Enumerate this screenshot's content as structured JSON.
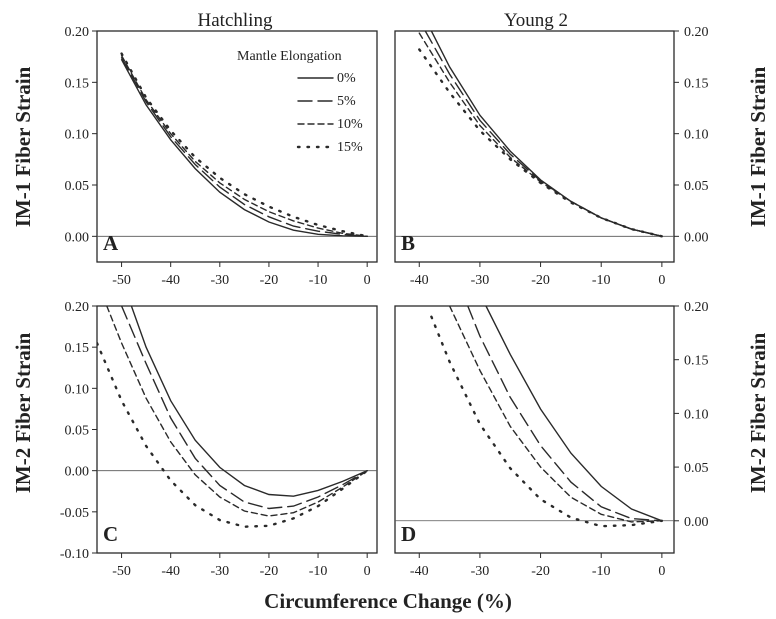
{
  "figure": {
    "x_axis_label": "Circumference Change (%)",
    "top_titles": [
      "Hatchling",
      "Young 2"
    ],
    "legend_title": "Mantle Elongation",
    "legend_items": [
      "0%",
      "5%",
      "10%",
      "15%"
    ],
    "line_color": "#2a2a2a"
  },
  "chart_data": [
    {
      "type": "line",
      "panel": "A",
      "title": "Hatchling",
      "ylabel": "IM-1 Fiber Strain",
      "xlim": [
        -55,
        2
      ],
      "ylim": [
        -0.025,
        0.2
      ],
      "xticks": [
        -50,
        -40,
        -30,
        -20,
        -10,
        0
      ],
      "yticks": [
        "0.00",
        "0.05",
        "0.10",
        "0.15",
        "0.20"
      ],
      "reference_line": 0,
      "series": [
        {
          "name": "0%",
          "style": "solid",
          "x": [
            -50,
            -45,
            -40,
            -35,
            -30,
            -25,
            -20,
            -15,
            -10,
            -5,
            0
          ],
          "y": [
            0.172,
            0.128,
            0.094,
            0.066,
            0.043,
            0.026,
            0.014,
            0.006,
            0.002,
            0.0005,
            0
          ]
        },
        {
          "name": "5%",
          "style": "long-dash",
          "x": [
            -50,
            -45,
            -40,
            -35,
            -30,
            -25,
            -20,
            -15,
            -10,
            -5,
            0
          ],
          "y": [
            0.174,
            0.131,
            0.097,
            0.07,
            0.048,
            0.031,
            0.019,
            0.01,
            0.005,
            0.002,
            0
          ]
        },
        {
          "name": "10%",
          "style": "short-dash",
          "x": [
            -50,
            -45,
            -40,
            -35,
            -30,
            -25,
            -20,
            -15,
            -10,
            -5,
            0
          ],
          "y": [
            0.176,
            0.133,
            0.1,
            0.073,
            0.052,
            0.036,
            0.024,
            0.015,
            0.008,
            0.003,
            0
          ]
        },
        {
          "name": "15%",
          "style": "dotted",
          "x": [
            -50,
            -45,
            -40,
            -35,
            -30,
            -25,
            -20,
            -15,
            -10,
            -5,
            0
          ],
          "y": [
            0.178,
            0.135,
            0.103,
            0.077,
            0.057,
            0.041,
            0.029,
            0.019,
            0.011,
            0.005,
            0
          ]
        }
      ]
    },
    {
      "type": "line",
      "panel": "B",
      "title": "Young 2",
      "ylabel": "IM-1 Fiber Strain",
      "xlim": [
        -44,
        2
      ],
      "ylim": [
        -0.025,
        0.2
      ],
      "xticks": [
        -40,
        -30,
        -20,
        -10,
        0
      ],
      "yticks": [
        "0.00",
        "0.05",
        "0.10",
        "0.15",
        "0.20"
      ],
      "reference_line": 0,
      "series": [
        {
          "name": "0%",
          "style": "solid",
          "x": [
            -38,
            -35,
            -30,
            -25,
            -20,
            -15,
            -10,
            -5,
            0
          ],
          "y": [
            0.2,
            0.165,
            0.118,
            0.083,
            0.055,
            0.034,
            0.018,
            0.007,
            0
          ]
        },
        {
          "name": "5%",
          "style": "long-dash",
          "x": [
            -39,
            -35,
            -30,
            -25,
            -20,
            -15,
            -10,
            -5,
            0
          ],
          "y": [
            0.2,
            0.158,
            0.113,
            0.08,
            0.054,
            0.034,
            0.018,
            0.007,
            0
          ]
        },
        {
          "name": "10%",
          "style": "short-dash",
          "x": [
            -40,
            -35,
            -30,
            -25,
            -20,
            -15,
            -10,
            -5,
            0
          ],
          "y": [
            0.198,
            0.15,
            0.108,
            0.077,
            0.053,
            0.034,
            0.018,
            0.007,
            0
          ]
        },
        {
          "name": "15%",
          "style": "dotted",
          "x": [
            -40,
            -35,
            -30,
            -25,
            -20,
            -15,
            -10,
            -5,
            0
          ],
          "y": [
            0.182,
            0.14,
            0.103,
            0.075,
            0.052,
            0.033,
            0.018,
            0.007,
            0
          ]
        }
      ]
    },
    {
      "type": "line",
      "panel": "C",
      "title": "",
      "ylabel": "IM-2 Fiber Strain",
      "xlim": [
        -55,
        2
      ],
      "ylim": [
        -0.1,
        0.2
      ],
      "xticks": [
        -50,
        -40,
        -30,
        -20,
        -10,
        0
      ],
      "yticks": [
        "-0.10",
        "-0.05",
        "0.00",
        "0.05",
        "0.10",
        "0.15",
        "0.20"
      ],
      "reference_line": 0,
      "series": [
        {
          "name": "0%",
          "style": "solid",
          "x": [
            -48,
            -45,
            -40,
            -35,
            -30,
            -25,
            -20,
            -15,
            -10,
            -5,
            0
          ],
          "y": [
            0.2,
            0.15,
            0.085,
            0.037,
            0.004,
            -0.018,
            -0.029,
            -0.031,
            -0.024,
            -0.013,
            0
          ]
        },
        {
          "name": "5%",
          "style": "long-dash",
          "x": [
            -50,
            -45,
            -40,
            -35,
            -30,
            -25,
            -20,
            -15,
            -10,
            -5,
            0
          ],
          "y": [
            0.2,
            0.13,
            0.064,
            0.015,
            -0.018,
            -0.038,
            -0.046,
            -0.043,
            -0.032,
            -0.017,
            0
          ]
        },
        {
          "name": "10%",
          "style": "short-dash",
          "x": [
            -53,
            -50,
            -45,
            -40,
            -35,
            -30,
            -25,
            -20,
            -15,
            -10,
            -5,
            0
          ],
          "y": [
            0.2,
            0.155,
            0.088,
            0.035,
            -0.005,
            -0.032,
            -0.049,
            -0.055,
            -0.051,
            -0.038,
            -0.02,
            0
          ]
        },
        {
          "name": "15%",
          "style": "dotted",
          "x": [
            -55,
            -50,
            -45,
            -40,
            -35,
            -30,
            -25,
            -20,
            -15,
            -10,
            -5,
            0
          ],
          "y": [
            0.155,
            0.085,
            0.03,
            -0.012,
            -0.042,
            -0.06,
            -0.068,
            -0.067,
            -0.058,
            -0.043,
            -0.022,
            0
          ]
        }
      ]
    },
    {
      "type": "line",
      "panel": "D",
      "title": "",
      "ylabel": "IM-2 Fiber Strain",
      "xlim": [
        -44,
        2
      ],
      "ylim": [
        -0.03,
        0.2
      ],
      "xticks": [
        -40,
        -30,
        -20,
        -10,
        0
      ],
      "yticks": [
        "0.00",
        "0.05",
        "0.10",
        "0.15",
        "0.20"
      ],
      "reference_line": 0,
      "series": [
        {
          "name": "0%",
          "style": "solid",
          "x": [
            -29,
            -25,
            -20,
            -15,
            -10,
            -5,
            0
          ],
          "y": [
            0.2,
            0.155,
            0.104,
            0.063,
            0.032,
            0.011,
            0
          ]
        },
        {
          "name": "5%",
          "style": "long-dash",
          "x": [
            -32,
            -30,
            -25,
            -20,
            -15,
            -10,
            -5,
            0
          ],
          "y": [
            0.2,
            0.172,
            0.115,
            0.07,
            0.036,
            0.013,
            0.002,
            0
          ]
        },
        {
          "name": "10%",
          "style": "short-dash",
          "x": [
            -35,
            -30,
            -25,
            -20,
            -15,
            -10,
            -5,
            0
          ],
          "y": [
            0.2,
            0.14,
            0.088,
            0.05,
            0.022,
            0.006,
            -0.001,
            0
          ]
        },
        {
          "name": "15%",
          "style": "dotted",
          "x": [
            -38,
            -35,
            -30,
            -25,
            -20,
            -15,
            -10,
            -5,
            0
          ],
          "y": [
            0.19,
            0.148,
            0.09,
            0.049,
            0.02,
            0.003,
            -0.005,
            -0.004,
            0
          ]
        }
      ]
    }
  ]
}
